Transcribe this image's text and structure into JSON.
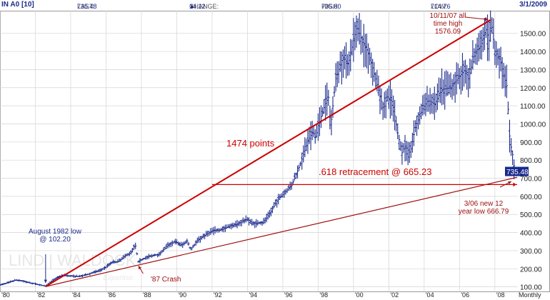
{
  "header": {
    "symbol": "IN A0 [10]",
    "last_label": "LAST:",
    "last_value": "735.48",
    "change_label": "CHANGE:",
    "change_arrow": "▲",
    "change_value": "14.12",
    "high_label": "HIGH:",
    "high_value": "735.80",
    "low_label": "LOW:",
    "low_value": "714.76",
    "date": "3/1/2009"
  },
  "colors": {
    "price": "#1a2a8c",
    "annotation": "#cc0000",
    "dark_red": "#a01010",
    "grid": "#d4d4d4",
    "label_blue": "#1a2a8c"
  },
  "watermark": {
    "text": "LIND | WALDOCK",
    "tagline": "Your ... Expertise."
  },
  "last_price_tag": "735.48",
  "chart_data": {
    "type": "bar",
    "title": "",
    "frequency_label": "Monthly",
    "xlabel": "",
    "ylabel": "",
    "xlim": [
      1980,
      2009.3
    ],
    "ylim": [
      75,
      1625
    ],
    "y_ticks": [
      100,
      200,
      300,
      400,
      500,
      600,
      700,
      800,
      900,
      1000,
      1100,
      1200,
      1300,
      1400,
      1500
    ],
    "y_tick_labels": [
      "100.00",
      "200.00",
      "300.00",
      "400.00",
      "500.00",
      "600.00",
      "700.00",
      "800.00",
      "900.00",
      "1000.00",
      "1100.00",
      "1200.00",
      "1300.00",
      "1400.00",
      "1500.00"
    ],
    "x_ticks": [
      1980,
      1982,
      1984,
      1986,
      1988,
      1990,
      1992,
      1994,
      1996,
      1998,
      2000,
      2002,
      2004,
      2006,
      2008
    ],
    "x_tick_labels": [
      "'80",
      "'82",
      "'84",
      "'86",
      "'88",
      "'90",
      "'92",
      "'94",
      "'96",
      "'98",
      "'00",
      "'02",
      "'04",
      "'06",
      "'08"
    ],
    "grid": true,
    "series": [
      {
        "style": "ohlc-monthly",
        "points": [
          [
            1980.0,
            110
          ],
          [
            1980.5,
            125
          ],
          [
            1980.9,
            138
          ],
          [
            1981.3,
            133
          ],
          [
            1981.7,
            122
          ],
          [
            1982.0,
            117
          ],
          [
            1982.58,
            104
          ],
          [
            1982.9,
            130
          ],
          [
            1983.3,
            155
          ],
          [
            1983.6,
            165
          ],
          [
            1984.0,
            160
          ],
          [
            1984.5,
            158
          ],
          [
            1984.9,
            167
          ],
          [
            1985.3,
            180
          ],
          [
            1985.7,
            192
          ],
          [
            1986.0,
            210
          ],
          [
            1986.3,
            235
          ],
          [
            1986.7,
            240
          ],
          [
            1987.0,
            265
          ],
          [
            1987.4,
            290
          ],
          [
            1987.65,
            335
          ],
          [
            1987.83,
            240
          ],
          [
            1988.0,
            250
          ],
          [
            1988.5,
            270
          ],
          [
            1989.0,
            280
          ],
          [
            1989.5,
            330
          ],
          [
            1989.9,
            350
          ],
          [
            1990.3,
            330
          ],
          [
            1990.6,
            355
          ],
          [
            1990.8,
            305
          ],
          [
            1991.2,
            360
          ],
          [
            1991.6,
            385
          ],
          [
            1992.0,
            410
          ],
          [
            1992.5,
            415
          ],
          [
            1993.0,
            435
          ],
          [
            1993.5,
            450
          ],
          [
            1994.0,
            475
          ],
          [
            1994.3,
            450
          ],
          [
            1994.9,
            455
          ],
          [
            1995.3,
            510
          ],
          [
            1995.7,
            580
          ],
          [
            1996.0,
            610
          ],
          [
            1996.5,
            660
          ],
          [
            1997.0,
            780
          ],
          [
            1997.4,
            900
          ],
          [
            1997.7,
            960
          ],
          [
            1997.85,
            920
          ],
          [
            1998.0,
            990
          ],
          [
            1998.4,
            1110
          ],
          [
            1998.6,
            1150
          ],
          [
            1998.7,
            980
          ],
          [
            1999.0,
            1250
          ],
          [
            1999.4,
            1370
          ],
          [
            1999.7,
            1330
          ],
          [
            2000.0,
            1460
          ],
          [
            2000.2,
            1540
          ],
          [
            2000.5,
            1450
          ],
          [
            2000.8,
            1400
          ],
          [
            2001.0,
            1340
          ],
          [
            2001.3,
            1230
          ],
          [
            2001.7,
            1080
          ],
          [
            2001.9,
            1150
          ],
          [
            2002.2,
            1120
          ],
          [
            2002.5,
            950
          ],
          [
            2002.75,
            840
          ],
          [
            2002.9,
            880
          ],
          [
            2003.2,
            840
          ],
          [
            2003.5,
            980
          ],
          [
            2003.9,
            1080
          ],
          [
            2004.2,
            1130
          ],
          [
            2004.6,
            1110
          ],
          [
            2005.0,
            1190
          ],
          [
            2005.5,
            1200
          ],
          [
            2005.9,
            1250
          ],
          [
            2006.3,
            1300
          ],
          [
            2006.5,
            1250
          ],
          [
            2006.9,
            1400
          ],
          [
            2007.2,
            1430
          ],
          [
            2007.5,
            1520
          ],
          [
            2007.7,
            1450
          ],
          [
            2007.78,
            1576
          ],
          [
            2008.0,
            1400
          ],
          [
            2008.3,
            1350
          ],
          [
            2008.5,
            1270
          ],
          [
            2008.7,
            1200
          ],
          [
            2008.8,
            960
          ],
          [
            2008.9,
            880
          ],
          [
            2009.0,
            830
          ],
          [
            2009.13,
            735
          ]
        ]
      }
    ],
    "annotations": {
      "high_label": "10/11/07 all time high 1576.09",
      "high_lines": [
        "10/11/07 all",
        "time high",
        "1576.09"
      ],
      "low_label": "August 1982 low @ 102.20",
      "low_lines": [
        "August 1982 low",
        "@ 102.20"
      ],
      "crash": "'87 Crash",
      "points_move": "1474 points",
      "retracement": ".618 retracement @ 665.23",
      "new_low_lines": [
        "3/06 new 12",
        "year low  666.79"
      ],
      "retracement_level": 665.23,
      "high_point": [
        2007.78,
        1576.09
      ],
      "low_point": [
        1982.58,
        102.2
      ],
      "trendline_end": [
        2009.25,
        705
      ],
      "crash_point": [
        1987.83,
        240
      ]
    }
  }
}
